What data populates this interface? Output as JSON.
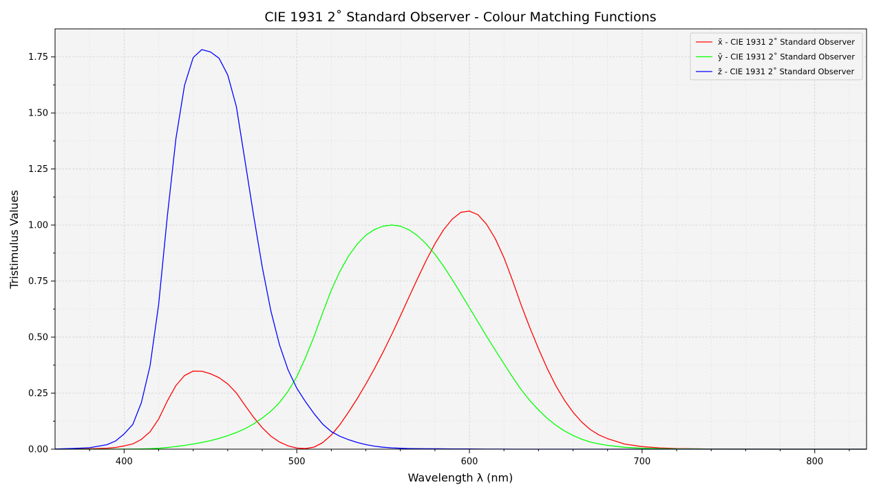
{
  "chart_data": {
    "type": "line",
    "title": "CIE 1931 2$^\\circ$ Standard Observer - Colour Matching Functions",
    "title_display": "CIE 1931 2˚ Standard Observer - Colour Matching Functions",
    "xlabel": "Wavelength λ (nm)",
    "ylabel": "Tristimulus Values",
    "xlim": [
      360,
      830
    ],
    "ylim": [
      0,
      1.875
    ],
    "x_ticks": [
      "400",
      "500",
      "600",
      "700",
      "800"
    ],
    "y_ticks": [
      "0.00",
      "0.25",
      "0.50",
      "0.75",
      "1.00",
      "1.25",
      "1.50",
      "1.75"
    ],
    "grid": true,
    "legend_position": "top-right",
    "background": "#f4f4f4",
    "x": [
      360,
      370,
      380,
      390,
      395,
      400,
      405,
      410,
      415,
      420,
      425,
      430,
      435,
      440,
      445,
      450,
      455,
      460,
      465,
      470,
      475,
      480,
      485,
      490,
      495,
      500,
      505,
      510,
      515,
      520,
      525,
      530,
      535,
      540,
      545,
      550,
      555,
      560,
      565,
      570,
      575,
      580,
      585,
      590,
      595,
      600,
      605,
      610,
      615,
      620,
      625,
      630,
      635,
      640,
      645,
      650,
      655,
      660,
      665,
      670,
      675,
      680,
      690,
      700,
      710,
      720,
      740,
      760,
      780,
      800,
      830
    ],
    "series": [
      {
        "name": "x̄ - CIE 1931 2˚ Standard Observer",
        "color": "#ff0000",
        "values": [
          0.0001,
          0.0007,
          0.0014,
          0.0042,
          0.0076,
          0.0143,
          0.0232,
          0.0435,
          0.0776,
          0.1344,
          0.2148,
          0.2839,
          0.3285,
          0.3483,
          0.3481,
          0.3362,
          0.3187,
          0.2908,
          0.2511,
          0.1954,
          0.1421,
          0.0956,
          0.058,
          0.032,
          0.0147,
          0.0049,
          0.0024,
          0.0093,
          0.0291,
          0.0633,
          0.1096,
          0.1655,
          0.2257,
          0.2904,
          0.3597,
          0.4334,
          0.5121,
          0.5945,
          0.6784,
          0.7621,
          0.8425,
          0.9163,
          0.9786,
          1.0263,
          1.0567,
          1.0622,
          1.0456,
          1.0026,
          0.9384,
          0.8544,
          0.7514,
          0.6424,
          0.5419,
          0.4479,
          0.3608,
          0.2835,
          0.2187,
          0.1649,
          0.1212,
          0.0874,
          0.0636,
          0.0468,
          0.0227,
          0.0114,
          0.0058,
          0.0029,
          0.0007,
          0.0002,
          0.0,
          0.0,
          0.0
        ]
      },
      {
        "name": "ȳ - CIE 1931 2˚ Standard Observer",
        "color": "#00ff00",
        "values": [
          0.0,
          0.0,
          0.0,
          0.0001,
          0.0002,
          0.0004,
          0.0006,
          0.0012,
          0.0022,
          0.004,
          0.0073,
          0.0116,
          0.0168,
          0.023,
          0.0298,
          0.038,
          0.048,
          0.06,
          0.0739,
          0.091,
          0.1126,
          0.139,
          0.1693,
          0.208,
          0.2586,
          0.323,
          0.4073,
          0.503,
          0.6082,
          0.71,
          0.7932,
          0.862,
          0.9149,
          0.954,
          0.9803,
          0.995,
          1.0,
          0.995,
          0.9786,
          0.952,
          0.9154,
          0.87,
          0.8163,
          0.757,
          0.6949,
          0.631,
          0.5668,
          0.503,
          0.4412,
          0.381,
          0.321,
          0.265,
          0.217,
          0.175,
          0.1382,
          0.107,
          0.0816,
          0.061,
          0.0446,
          0.032,
          0.0232,
          0.017,
          0.0082,
          0.0041,
          0.0021,
          0.001,
          0.0003,
          0.0001,
          0.0,
          0.0,
          0.0
        ]
      },
      {
        "name": "z̄ - CIE 1931 2˚ Standard Observer",
        "color": "#0000ff",
        "values": [
          0.0006,
          0.0032,
          0.0065,
          0.0201,
          0.0362,
          0.0679,
          0.1102,
          0.2074,
          0.3713,
          0.6456,
          1.0391,
          1.3856,
          1.623,
          1.7471,
          1.7826,
          1.7721,
          1.7441,
          1.6692,
          1.5281,
          1.2876,
          1.0419,
          0.813,
          0.6162,
          0.4652,
          0.3533,
          0.272,
          0.2123,
          0.1582,
          0.1117,
          0.0782,
          0.0573,
          0.0422,
          0.0298,
          0.0203,
          0.0134,
          0.0087,
          0.0057,
          0.0039,
          0.0027,
          0.0021,
          0.0018,
          0.0017,
          0.0014,
          0.0011,
          0.001,
          0.0008,
          0.0006,
          0.0003,
          0.0002,
          0.0002,
          0.0001,
          0.0,
          0.0,
          0.0,
          0.0,
          0.0,
          0.0,
          0.0,
          0.0,
          0.0,
          0.0,
          0.0,
          0.0,
          0.0,
          0.0,
          0.0,
          0.0,
          0.0,
          0.0,
          0.0,
          0.0
        ]
      }
    ]
  }
}
